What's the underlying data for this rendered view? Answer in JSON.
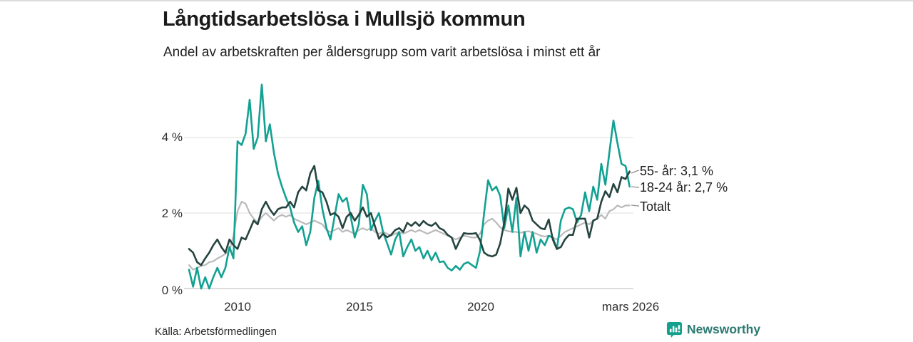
{
  "page": {
    "source": "Källa: Arbetsförmedlingen",
    "brand": {
      "name": "Newsworthy",
      "text_color": "#2c7a72",
      "icon": "bar-chart-speech-bubble-icon",
      "icon_color": "#13a08d"
    }
  },
  "chart_data": {
    "type": "line",
    "title": "Långtidsarbetslösa i Mullsjö kommun",
    "subtitle": "Andel av arbetskraften per åldersgrupp som varit arbetslösa i minst ett år",
    "unit": "%",
    "grid": true,
    "legend_position": "right-annotations",
    "x_axis": {
      "start": 2008.0,
      "step_years": 0.16667,
      "points": 110,
      "ticks": [
        {
          "x": 2010,
          "label": "2010"
        },
        {
          "x": 2015,
          "label": "2015"
        },
        {
          "x": 2020,
          "label": "2020"
        },
        {
          "x": 2026.2,
          "label": "mars 2026"
        }
      ]
    },
    "y_axis": {
      "range": [
        0,
        5.5
      ],
      "ticks": [
        {
          "v": 0,
          "label": "0 %"
        },
        {
          "v": 2,
          "label": "2 %"
        },
        {
          "v": 4,
          "label": "4 %"
        }
      ]
    },
    "series": [
      {
        "name": "55- år",
        "end_label": "55- år: 3,1 %",
        "end_value": 3.1,
        "color": "#264440",
        "stroke_width": 2.6,
        "values": [
          1.05,
          0.95,
          0.7,
          0.62,
          0.8,
          0.95,
          1.15,
          1.3,
          1.1,
          0.95,
          1.3,
          1.15,
          1.05,
          1.35,
          1.3,
          1.55,
          1.8,
          1.7,
          2.1,
          2.3,
          2.1,
          1.95,
          2.1,
          2.15,
          2.15,
          2.3,
          2.15,
          2.55,
          2.7,
          2.6,
          3.05,
          3.25,
          2.6,
          2.55,
          2.3,
          1.95,
          2.0,
          1.9,
          1.6,
          1.9,
          2.0,
          1.8,
          1.95,
          2.15,
          1.9,
          2.0,
          1.65,
          1.32,
          1.45,
          1.36,
          1.42,
          1.55,
          1.6,
          1.5,
          1.74,
          1.66,
          1.76,
          1.66,
          1.79,
          1.7,
          1.66,
          1.74,
          1.6,
          1.55,
          1.42,
          1.35,
          1.05,
          1.28,
          1.47,
          1.45,
          1.45,
          1.47,
          1.28,
          0.95,
          0.88,
          0.85,
          0.9,
          1.2,
          1.75,
          2.65,
          2.35,
          2.67,
          2.0,
          2.2,
          2.1,
          1.8,
          1.7,
          1.6,
          1.57,
          1.83,
          1.3,
          1.05,
          1.1,
          1.3,
          1.42,
          1.42,
          1.85,
          1.85,
          1.85,
          1.35,
          1.8,
          1.85,
          2.3,
          2.58,
          2.42,
          2.77,
          2.55,
          2.95,
          2.9,
          3.1
        ]
      },
      {
        "name": "18-24 år",
        "end_label": "18-24 år: 2,7 %",
        "end_value": 2.7,
        "color": "#12a192",
        "stroke_width": 2.6,
        "values": [
          0.5,
          0.05,
          0.55,
          0,
          0.3,
          0,
          0.3,
          0.55,
          0.3,
          0.55,
          1.1,
          0.8,
          3.9,
          3.8,
          4.1,
          5.0,
          3.7,
          4.0,
          5.4,
          3.9,
          4.35,
          3.6,
          3.05,
          2.7,
          2.4,
          2.15,
          1.75,
          1.5,
          1.65,
          1.15,
          1.5,
          2.4,
          2.85,
          2.1,
          1.6,
          1.3,
          1.9,
          2.5,
          2.3,
          2.4,
          1.9,
          1.35,
          1.7,
          2.75,
          2.5,
          1.55,
          1.8,
          2.0,
          1.5,
          1.2,
          0.9,
          1.3,
          1.5,
          0.85,
          1.1,
          1.3,
          1.0,
          1.1,
          0.8,
          1.0,
          0.75,
          0.95,
          0.7,
          0.72,
          0.55,
          0.48,
          0.6,
          0.5,
          0.65,
          0.7,
          0.62,
          0.55,
          1.0,
          2.0,
          2.87,
          2.6,
          2.7,
          2.45,
          1.6,
          2.2,
          1.5,
          2.4,
          0.85,
          1.5,
          1.0,
          1.5,
          0.95,
          1.3,
          1.15,
          1.4,
          1.35,
          1.05,
          1.8,
          2.1,
          2.15,
          2.1,
          1.75,
          1.95,
          2.55,
          2.05,
          2.7,
          2.35,
          3.3,
          2.75,
          3.6,
          4.45,
          3.85,
          3.3,
          3.25,
          2.7
        ]
      },
      {
        "name": "Totalt",
        "end_label": "Totalt",
        "end_value": 2.2,
        "color": "#bababa",
        "stroke_width": 2.2,
        "values": [
          0.62,
          0.5,
          0.55,
          0.6,
          0.62,
          0.7,
          0.72,
          0.8,
          0.85,
          0.92,
          1.0,
          1.4,
          2.05,
          2.3,
          2.25,
          2.0,
          1.85,
          1.75,
          1.9,
          2.0,
          1.9,
          1.8,
          1.9,
          1.95,
          1.9,
          1.95,
          1.85,
          1.8,
          1.75,
          1.7,
          1.75,
          1.8,
          1.75,
          1.7,
          1.55,
          1.5,
          1.55,
          1.6,
          1.5,
          1.55,
          1.5,
          1.45,
          1.55,
          1.6,
          1.55,
          1.6,
          1.5,
          1.45,
          1.5,
          1.45,
          1.4,
          1.45,
          1.5,
          1.45,
          1.5,
          1.55,
          1.5,
          1.55,
          1.5,
          1.45,
          1.5,
          1.55,
          1.5,
          1.45,
          1.4,
          1.35,
          1.3,
          1.35,
          1.4,
          1.38,
          1.35,
          1.35,
          1.45,
          1.7,
          1.8,
          1.85,
          1.75,
          1.62,
          1.55,
          1.52,
          1.5,
          1.5,
          1.48,
          1.5,
          1.52,
          1.48,
          1.45,
          1.4,
          1.38,
          1.4,
          1.35,
          1.3,
          1.4,
          1.5,
          1.55,
          1.6,
          1.65,
          1.7,
          1.75,
          1.7,
          1.8,
          1.85,
          1.95,
          1.85,
          2.05,
          2.1,
          2.2,
          2.15,
          2.2,
          2.2
        ]
      }
    ],
    "source": "Källa: Arbetsförmedlingen"
  }
}
